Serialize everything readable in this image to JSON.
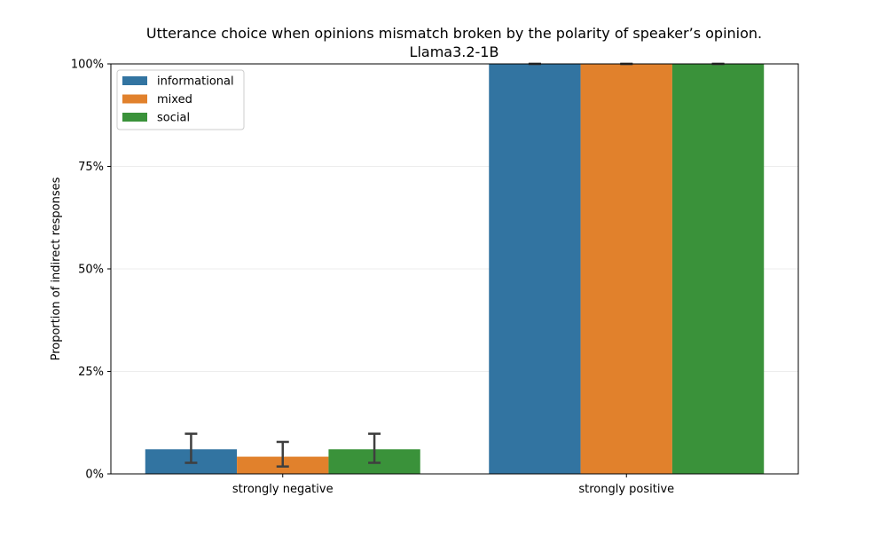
{
  "chart_data": {
    "type": "bar",
    "title": "Utterance choice when opinions mismatch broken by the polarity of speaker’s opinion.",
    "subtitle": "Llama3.2-1B",
    "xlabel": "",
    "ylabel": "Proportion of indirect responses",
    "ylim": [
      0,
      100
    ],
    "yticks": [
      "0%",
      "25%",
      "50%",
      "75%",
      "100%"
    ],
    "ytick_values": [
      0,
      25,
      50,
      75,
      100
    ],
    "categories": [
      "strongly negative",
      "strongly positive"
    ],
    "series": [
      {
        "name": "informational",
        "color": "#3274a1",
        "values": [
          6,
          100
        ],
        "error": [
          [
            2.7,
            9.8
          ],
          [
            100,
            100
          ]
        ]
      },
      {
        "name": "mixed",
        "color": "#e1812c",
        "values": [
          4.2,
          100
        ],
        "error": [
          [
            1.8,
            7.8
          ],
          [
            100,
            100
          ]
        ]
      },
      {
        "name": "social",
        "color": "#3a923a",
        "values": [
          6,
          100
        ],
        "error": [
          [
            2.7,
            9.8
          ],
          [
            100,
            100
          ]
        ]
      }
    ],
    "grid": true,
    "legend": "top-left"
  }
}
